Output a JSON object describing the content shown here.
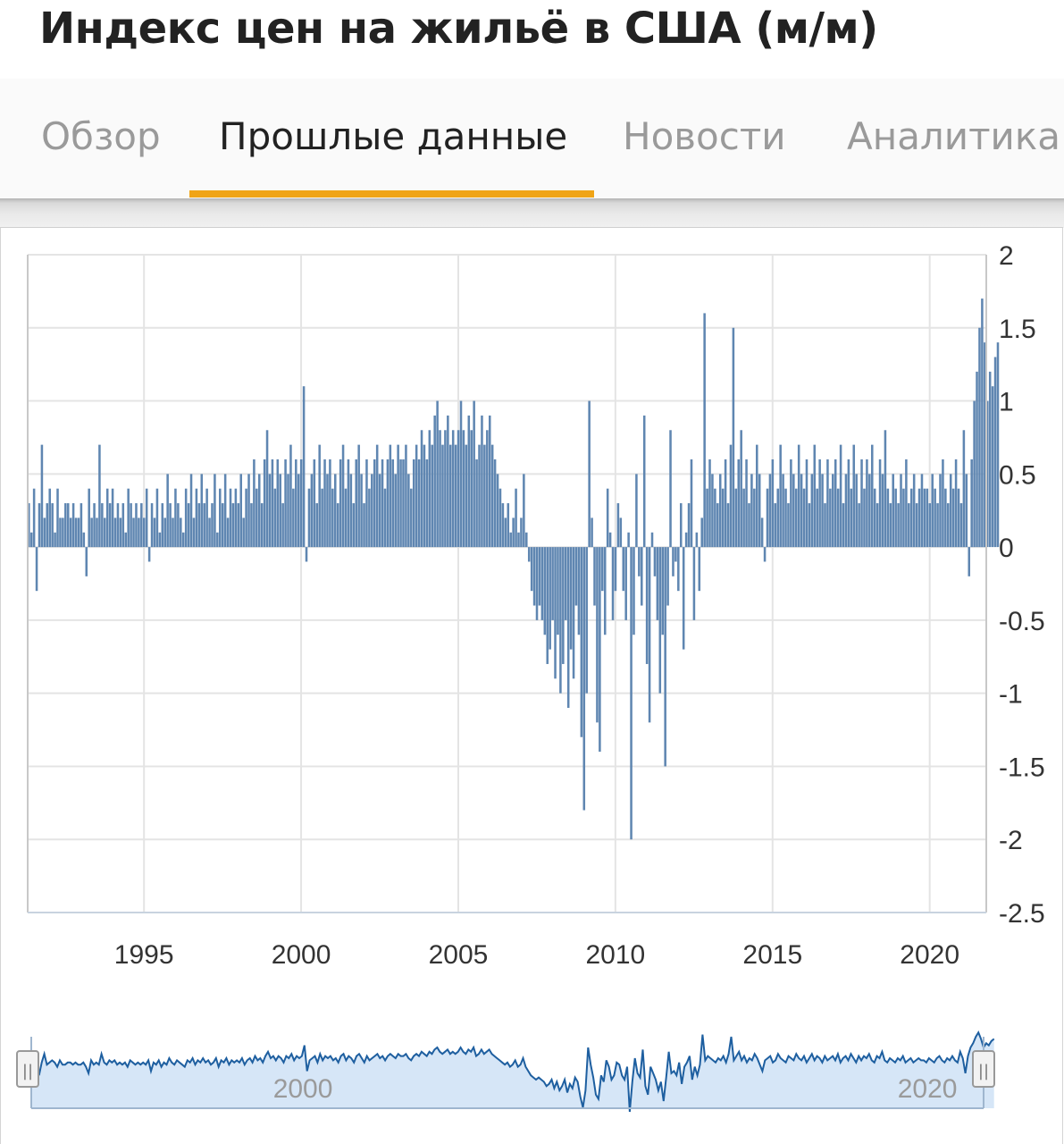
{
  "title": "Индекс цен на жильё в США (м/м)",
  "tabs": [
    {
      "label": "Обзор",
      "active": false
    },
    {
      "label": "Прошлые данные",
      "active": true
    },
    {
      "label": "Новости",
      "active": false
    },
    {
      "label": "Аналитика",
      "active": false
    }
  ],
  "colors": {
    "bar": "#5f86b1",
    "accent": "#f0a416",
    "navigator_line": "#1e5fa0",
    "navigator_fill": "#d6e6f7"
  },
  "chart_data": {
    "type": "bar",
    "x_start": 1991.3,
    "x_step_months": 1,
    "xlim": [
      1991.3,
      2021.8
    ],
    "ylim": [
      -2.5,
      2
    ],
    "y_ticks": [
      "2",
      "1.5",
      "1",
      "0.5",
      "0",
      "-0.5",
      "-1",
      "-1.5",
      "-2",
      "-2.5"
    ],
    "x_ticks": [
      "1995",
      "2000",
      "2005",
      "2010",
      "2015",
      "2020"
    ],
    "y_axis_position": "right",
    "grid": true,
    "annual_values": [
      [
        0.3,
        0.1,
        0.4,
        -0.3,
        0.3,
        0.7,
        0.2,
        0.3,
        0.4
      ],
      [
        0.3,
        0.1,
        0.4,
        0.2,
        0.2,
        0.3,
        0.3,
        0.2,
        0.3,
        0.2
      ],
      [
        0.2,
        0.3,
        0.1,
        -0.2,
        0.4,
        0.2,
        0.3,
        0.2,
        0.7,
        0.3,
        0.2,
        0.4
      ],
      [
        0.3,
        0.4,
        0.2,
        0.3,
        0.2,
        0.3,
        0.1,
        0.4,
        0.3,
        0.2,
        0.3,
        0.2
      ],
      [
        0.3,
        0.2,
        0.4,
        -0.1,
        0.3,
        0.2,
        0.4,
        0.1,
        0.3,
        0.2,
        0.5,
        0.3
      ],
      [
        0.2,
        0.4,
        0.3,
        0.2,
        0.1,
        0.4,
        0.3,
        0.5,
        0.2,
        0.4,
        0.3,
        0.5
      ],
      [
        0.3,
        0.4,
        0.2,
        0.3,
        0.5,
        0.1,
        0.4,
        0.3,
        0.5,
        0.2,
        0.4,
        0.3
      ],
      [
        0.4,
        0.3,
        0.5,
        0.2,
        0.4,
        0.5,
        0.3,
        0.6,
        0.4,
        0.5,
        0.3,
        0.6
      ],
      [
        0.8,
        0.5,
        0.6,
        0.4,
        0.6,
        0.5,
        0.3,
        0.6,
        0.5,
        0.7,
        0.4,
        0.6
      ],
      [
        0.5,
        0.6,
        1.1,
        -0.1,
        0.4,
        0.5,
        0.6,
        0.3,
        0.7,
        0.4,
        0.6,
        0.5
      ],
      [
        0.6,
        0.4,
        0.5,
        0.3,
        0.6,
        0.7,
        0.4,
        0.6,
        0.5,
        0.3,
        0.6,
        0.7
      ],
      [
        0.5,
        0.3,
        0.6,
        0.4,
        0.5,
        0.6,
        0.7,
        0.5,
        0.6,
        0.4,
        0.6,
        0.7
      ],
      [
        0.6,
        0.5,
        0.7,
        0.6,
        0.6,
        0.7,
        0.5,
        0.4,
        0.6,
        0.7,
        0.6,
        0.8
      ],
      [
        0.7,
        0.6,
        0.8,
        0.7,
        0.9,
        1.0,
        0.8,
        0.7,
        0.8,
        0.9,
        0.7,
        0.8
      ],
      [
        0.7,
        0.8,
        1.0,
        0.8,
        0.7,
        0.9,
        0.8,
        1.0,
        0.6,
        0.7,
        0.9,
        0.7
      ],
      [
        0.8,
        0.9,
        0.7,
        0.6,
        0.5,
        0.4,
        0.3,
        0.2,
        0.3,
        0.1,
        0.2,
        0.4
      ],
      [
        0.1,
        0.2,
        0.5,
        0.1,
        -0.1,
        -0.3,
        -0.4,
        -0.5,
        -0.4,
        -0.5,
        -0.6,
        -0.8
      ],
      [
        -0.7,
        -0.5,
        -0.9,
        -0.6,
        -1.0,
        -0.8,
        -0.5,
        -1.1,
        -0.7,
        -0.9,
        -0.4,
        -0.6
      ],
      [
        -1.3,
        -1.8,
        -1.0,
        1.0,
        0.2,
        -0.4,
        -1.2,
        -1.4,
        -0.3,
        -0.6,
        0.4,
        0.1
      ],
      [
        -0.5,
        -0.3,
        0.3,
        0.2,
        -0.3,
        -0.5,
        0.1,
        -2.0,
        -0.6,
        0.5,
        -0.2,
        -0.4
      ],
      [
        0.9,
        -0.8,
        -1.2,
        0.1,
        -0.2,
        -0.5,
        -1.0,
        -0.6,
        -1.5,
        -0.4,
        0.8,
        -0.2
      ],
      [
        -0.1,
        -0.3,
        0.3,
        -0.7,
        0.1,
        0.3,
        0.6,
        -0.5,
        0.1,
        -0.3,
        0.2,
        1.6
      ],
      [
        0.4,
        0.6,
        0.5,
        0.4,
        0.3,
        0.5,
        0.4,
        0.6,
        0.3,
        0.7,
        1.5,
        0.4
      ],
      [
        0.6,
        0.8,
        0.4,
        0.6,
        0.3,
        0.5,
        0.4,
        0.7,
        0.5,
        0.2,
        -0.1,
        0.4
      ],
      [
        0.5,
        0.6,
        0.3,
        0.4,
        0.7,
        0.5,
        0.4,
        0.3,
        0.6,
        0.5,
        0.4,
        0.7
      ],
      [
        0.5,
        0.4,
        0.6,
        0.3,
        0.5,
        0.7,
        0.4,
        0.6,
        0.5,
        0.3,
        0.6,
        0.4
      ],
      [
        0.5,
        0.6,
        0.4,
        0.7,
        0.3,
        0.5,
        0.6,
        0.4,
        0.7,
        0.5,
        0.3,
        0.6
      ],
      [
        0.4,
        0.6,
        0.5,
        0.7,
        0.4,
        0.3,
        0.6,
        0.5,
        0.8,
        0.4,
        0.3,
        0.5
      ],
      [
        0.4,
        0.3,
        0.5,
        0.4,
        0.6,
        0.3,
        0.4,
        0.5,
        0.3,
        0.4,
        0.5,
        0.4
      ],
      [
        0.4,
        0.3,
        0.5,
        0.4,
        0.3,
        0.5,
        0.6,
        0.4,
        0.3,
        0.5,
        0.4,
        0.6
      ],
      [
        0.4,
        0.3,
        0.8,
        0.5,
        -0.2,
        0.6,
        1.0,
        1.2,
        1.5,
        1.7,
        1.4,
        1.0
      ],
      [
        1.2,
        1.1,
        1.3,
        1.4
      ]
    ]
  },
  "navigator": {
    "tick_labels": [
      {
        "label": "2000",
        "year": 2000
      },
      {
        "label": "2020",
        "year": 2020
      }
    ],
    "handle_glyph": "||"
  }
}
